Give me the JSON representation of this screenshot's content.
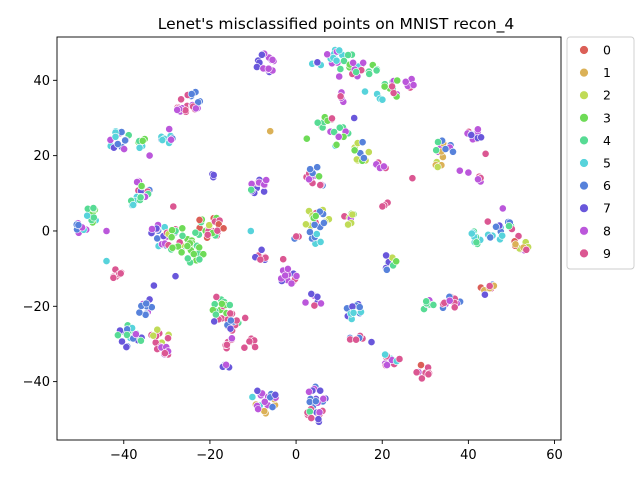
{
  "chart_data": {
    "type": "scatter",
    "title": "Lenet's misclassified points on MNIST recon_4",
    "xlabel": "",
    "ylabel": "",
    "xlim": [
      -55.5,
      61.5
    ],
    "ylim": [
      -55.5,
      51.5
    ],
    "xticks": [
      -40,
      -20,
      0,
      20,
      40,
      60
    ],
    "yticks": [
      -40,
      -20,
      0,
      20,
      40
    ],
    "grid": false,
    "legend_position": "outside-right",
    "legend": [
      {
        "label": "0",
        "color": "#db5f57"
      },
      {
        "label": "1",
        "color": "#dbb157"
      },
      {
        "label": "2",
        "color": "#c0db57"
      },
      {
        "label": "3",
        "color": "#6edb57"
      },
      {
        "label": "4",
        "color": "#57db94"
      },
      {
        "label": "5",
        "color": "#57d3db"
      },
      {
        "label": "6",
        "color": "#5782db"
      },
      {
        "label": "7",
        "color": "#6957db"
      },
      {
        "label": "8",
        "color": "#bb57db"
      },
      {
        "label": "9",
        "color": "#db5792"
      }
    ],
    "clusters": [
      {
        "cx": -24.5,
        "cy": 34.5,
        "r": 2.6,
        "n": 16,
        "mix": [
          8,
          9,
          6
        ]
      },
      {
        "cx": -26.5,
        "cy": 32.0,
        "r": 1.5,
        "n": 8,
        "mix": [
          9,
          8
        ]
      },
      {
        "cx": -30.0,
        "cy": 25.5,
        "r": 2.0,
        "n": 10,
        "mix": [
          6,
          5,
          8
        ]
      },
      {
        "cx": -41.0,
        "cy": 24.0,
        "r": 2.6,
        "n": 14,
        "mix": [
          4,
          5,
          6,
          7,
          8
        ]
      },
      {
        "cx": -36.0,
        "cy": 23.5,
        "r": 1.6,
        "n": 8,
        "mix": [
          4,
          5,
          3
        ]
      },
      {
        "cx": -47.0,
        "cy": 4.0,
        "r": 2.2,
        "n": 10,
        "mix": [
          4,
          5,
          3
        ]
      },
      {
        "cx": -50.0,
        "cy": 1.0,
        "r": 1.8,
        "n": 8,
        "mix": [
          5,
          8,
          6
        ]
      },
      {
        "cx": -36.0,
        "cy": 11.0,
        "r": 2.2,
        "n": 14,
        "mix": [
          3,
          4,
          6,
          7,
          8,
          9
        ]
      },
      {
        "cx": -37.0,
        "cy": 8.0,
        "r": 1.6,
        "n": 8,
        "mix": [
          5,
          4
        ]
      },
      {
        "cx": -42.0,
        "cy": -11.0,
        "r": 1.6,
        "n": 7,
        "mix": [
          9
        ]
      },
      {
        "cx": -35.5,
        "cy": -20.0,
        "r": 2.5,
        "n": 10,
        "mix": [
          8,
          7,
          6
        ]
      },
      {
        "cx": -38.5,
        "cy": -28.0,
        "r": 3.0,
        "n": 22,
        "mix": [
          4,
          5,
          6,
          7,
          8
        ]
      },
      {
        "cx": -31.5,
        "cy": -28.0,
        "r": 2.6,
        "n": 10,
        "mix": [
          8,
          9,
          2
        ]
      },
      {
        "cx": -31.0,
        "cy": -32.0,
        "r": 1.5,
        "n": 8,
        "mix": [
          8,
          9
        ]
      },
      {
        "cx": -31.0,
        "cy": -1.0,
        "r": 3.0,
        "n": 18,
        "mix": [
          8,
          9,
          6,
          7,
          5,
          4
        ]
      },
      {
        "cx": -27.0,
        "cy": -2.5,
        "r": 3.2,
        "n": 20,
        "mix": [
          4,
          3,
          2,
          9
        ]
      },
      {
        "cx": -24.0,
        "cy": -6.0,
        "r": 2.6,
        "n": 14,
        "mix": [
          4,
          3
        ]
      },
      {
        "cx": -21.0,
        "cy": 1.0,
        "r": 3.5,
        "n": 20,
        "mix": [
          2,
          3,
          4,
          9,
          0
        ]
      },
      {
        "cx": -18.0,
        "cy": 1.5,
        "r": 1.5,
        "n": 6,
        "mix": [
          9,
          0
        ]
      },
      {
        "cx": -17.0,
        "cy": -21.0,
        "r": 2.8,
        "n": 16,
        "mix": [
          4,
          3,
          9
        ]
      },
      {
        "cx": -14.0,
        "cy": -24.0,
        "r": 2.5,
        "n": 14,
        "mix": [
          9,
          4,
          6,
          7
        ]
      },
      {
        "cx": -16.0,
        "cy": -29.5,
        "r": 1.6,
        "n": 6,
        "mix": [
          9,
          8
        ]
      },
      {
        "cx": -10.0,
        "cy": -30.0,
        "r": 1.4,
        "n": 5,
        "mix": [
          9
        ]
      },
      {
        "cx": -16.5,
        "cy": -36.5,
        "r": 1.2,
        "n": 5,
        "mix": [
          8,
          7
        ]
      },
      {
        "cx": -7.5,
        "cy": -45.0,
        "r": 3.2,
        "n": 22,
        "mix": [
          8,
          7,
          6,
          5,
          1
        ]
      },
      {
        "cx": 4.5,
        "cy": -44.0,
        "r": 2.4,
        "n": 14,
        "mix": [
          8,
          7,
          6
        ]
      },
      {
        "cx": 4.5,
        "cy": -48.5,
        "r": 2.2,
        "n": 12,
        "mix": [
          7,
          8,
          9,
          4
        ]
      },
      {
        "cx": -9.0,
        "cy": 11.5,
        "r": 2.0,
        "n": 10,
        "mix": [
          3,
          4,
          7,
          8,
          9
        ]
      },
      {
        "cx": -7.5,
        "cy": 13.0,
        "r": 1.2,
        "n": 4,
        "mix": [
          8
        ]
      },
      {
        "cx": -8.0,
        "cy": -6.5,
        "r": 1.6,
        "n": 6,
        "mix": [
          9,
          7
        ]
      },
      {
        "cx": -1.5,
        "cy": -12.0,
        "r": 2.2,
        "n": 12,
        "mix": [
          8,
          9,
          7
        ]
      },
      {
        "cx": 4.0,
        "cy": -18.5,
        "r": 2.0,
        "n": 8,
        "mix": [
          9,
          8,
          7
        ]
      },
      {
        "cx": -7.0,
        "cy": 44.5,
        "r": 2.4,
        "n": 16,
        "mix": [
          8,
          7
        ]
      },
      {
        "cx": 4.5,
        "cy": 44.5,
        "r": 1.5,
        "n": 4,
        "mix": [
          7,
          5
        ]
      },
      {
        "cx": 9.0,
        "cy": 46.5,
        "r": 2.2,
        "n": 12,
        "mix": [
          8,
          5
        ]
      },
      {
        "cx": 13.0,
        "cy": 44.0,
        "r": 3.0,
        "n": 16,
        "mix": [
          8,
          9,
          5,
          4,
          3
        ]
      },
      {
        "cx": 17.5,
        "cy": 42.5,
        "r": 1.5,
        "n": 6,
        "mix": [
          4,
          3
        ]
      },
      {
        "cx": 22.0,
        "cy": 38.0,
        "r": 2.5,
        "n": 12,
        "mix": [
          3,
          4,
          8,
          9
        ]
      },
      {
        "cx": 26.0,
        "cy": 39.0,
        "r": 1.5,
        "n": 6,
        "mix": [
          9,
          8
        ]
      },
      {
        "cx": 11.0,
        "cy": 35.5,
        "r": 1.3,
        "n": 4,
        "mix": [
          8,
          9
        ]
      },
      {
        "cx": 7.0,
        "cy": 28.5,
        "r": 2.0,
        "n": 8,
        "mix": [
          9,
          4,
          3
        ]
      },
      {
        "cx": 10.0,
        "cy": 25.0,
        "r": 2.5,
        "n": 10,
        "mix": [
          4,
          5,
          8,
          3
        ]
      },
      {
        "cx": 15.0,
        "cy": 21.0,
        "r": 2.5,
        "n": 12,
        "mix": [
          6,
          8,
          2,
          3
        ]
      },
      {
        "cx": 19.5,
        "cy": 16.5,
        "r": 1.6,
        "n": 6,
        "mix": [
          8,
          9
        ]
      },
      {
        "cx": 5.0,
        "cy": 14.5,
        "r": 2.6,
        "n": 14,
        "mix": [
          3,
          9,
          8,
          6
        ]
      },
      {
        "cx": 5.0,
        "cy": 3.0,
        "r": 3.0,
        "n": 18,
        "mix": [
          3,
          2,
          5,
          9,
          6
        ]
      },
      {
        "cx": 12.0,
        "cy": 3.0,
        "r": 2.0,
        "n": 10,
        "mix": [
          2,
          3,
          9,
          8
        ]
      },
      {
        "cx": 4.5,
        "cy": -1.5,
        "r": 1.8,
        "n": 6,
        "mix": [
          5,
          6,
          9
        ]
      },
      {
        "cx": 21.5,
        "cy": -8.0,
        "r": 2.2,
        "n": 10,
        "mix": [
          4,
          2,
          3,
          6,
          7
        ]
      },
      {
        "cx": 13.0,
        "cy": -21.0,
        "r": 2.2,
        "n": 12,
        "mix": [
          6,
          5,
          7
        ]
      },
      {
        "cx": 14.0,
        "cy": -29.0,
        "r": 1.6,
        "n": 6,
        "mix": [
          9,
          6
        ]
      },
      {
        "cx": 22.0,
        "cy": -34.0,
        "r": 2.0,
        "n": 10,
        "mix": [
          9,
          8,
          5
        ]
      },
      {
        "cx": 29.5,
        "cy": -37.5,
        "r": 1.8,
        "n": 8,
        "mix": [
          9,
          8,
          0
        ]
      },
      {
        "cx": 30.5,
        "cy": -19.0,
        "r": 2.0,
        "n": 8,
        "mix": [
          8,
          4
        ]
      },
      {
        "cx": 36.0,
        "cy": -19.5,
        "r": 2.2,
        "n": 12,
        "mix": [
          8,
          9,
          6
        ]
      },
      {
        "cx": 34.5,
        "cy": 22.0,
        "r": 2.2,
        "n": 12,
        "mix": [
          6,
          8,
          4,
          1
        ]
      },
      {
        "cx": 33.5,
        "cy": 18.0,
        "r": 1.2,
        "n": 4,
        "mix": [
          2,
          1
        ]
      },
      {
        "cx": 41.5,
        "cy": 26.0,
        "r": 2.0,
        "n": 10,
        "mix": [
          6,
          7,
          9,
          8
        ]
      },
      {
        "cx": 42.0,
        "cy": 14.0,
        "r": 1.2,
        "n": 5,
        "mix": [
          9,
          8
        ]
      },
      {
        "cx": 42.0,
        "cy": -1.5,
        "r": 2.0,
        "n": 10,
        "mix": [
          5,
          4
        ]
      },
      {
        "cx": 46.5,
        "cy": 0.0,
        "r": 2.2,
        "n": 10,
        "mix": [
          5,
          6,
          7
        ]
      },
      {
        "cx": 44.5,
        "cy": -15.5,
        "r": 1.8,
        "n": 8,
        "mix": [
          9,
          6,
          7,
          0,
          1
        ]
      },
      {
        "cx": 52.5,
        "cy": -3.0,
        "r": 2.2,
        "n": 12,
        "mix": [
          9,
          0,
          2,
          1,
          8
        ]
      },
      {
        "cx": 50.0,
        "cy": 1.5,
        "r": 1.4,
        "n": 5,
        "mix": [
          6,
          4,
          9
        ]
      },
      {
        "cx": -19.5,
        "cy": 14.5,
        "r": 1.0,
        "n": 3,
        "mix": [
          7
        ]
      },
      {
        "cx": 0.0,
        "cy": -2.0,
        "r": 1.0,
        "n": 3,
        "mix": [
          6,
          9
        ]
      },
      {
        "cx": 20.5,
        "cy": 7.0,
        "r": 1.0,
        "n": 3,
        "mix": [
          9,
          8
        ]
      },
      {
        "cx": 19.5,
        "cy": 35.5,
        "r": 1.2,
        "n": 4,
        "mix": [
          5
        ]
      }
    ],
    "singles": [
      [
        -34,
        20,
        8
      ],
      [
        -28.5,
        6.5,
        9
      ],
      [
        -28,
        -12,
        7
      ],
      [
        -44,
        0,
        8
      ],
      [
        -44,
        -8,
        5
      ],
      [
        -33,
        -14.5,
        7
      ],
      [
        -10.5,
        0,
        5
      ],
      [
        -8,
        -5,
        7
      ],
      [
        -19,
        -24,
        7
      ],
      [
        2.5,
        24.5,
        3
      ],
      [
        13.5,
        30,
        7
      ],
      [
        10,
        41,
        8
      ],
      [
        16,
        37,
        5
      ],
      [
        27,
        14,
        9
      ],
      [
        38,
        16,
        8
      ],
      [
        40,
        15.5,
        8
      ],
      [
        44,
        20.5,
        9
      ],
      [
        44.5,
        2.5,
        9
      ],
      [
        48,
        6,
        8
      ],
      [
        -18.5,
        -17.5,
        9
      ],
      [
        -12,
        -31,
        9
      ],
      [
        24,
        -34,
        9
      ],
      [
        17.5,
        -29.5,
        7
      ],
      [
        -3,
        -7.5,
        9
      ],
      [
        -6,
        26.5,
        1
      ]
    ]
  }
}
